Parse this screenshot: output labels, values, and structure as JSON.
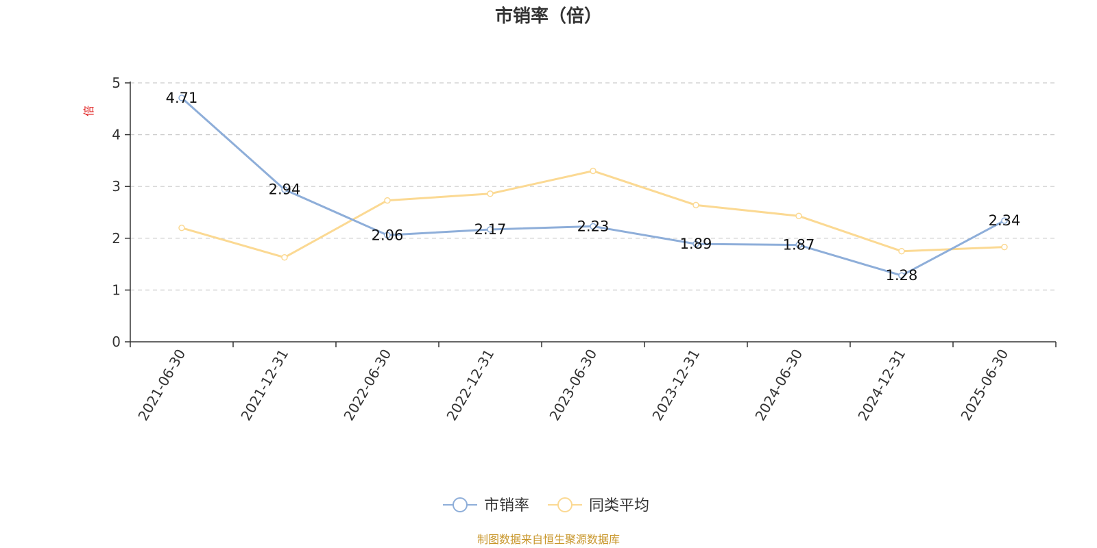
{
  "chart_data": {
    "type": "line",
    "title": "市销率（倍）",
    "ylabel": "倍",
    "xlabel": "",
    "ylim": [
      0,
      5
    ],
    "yticks": [
      0,
      1,
      2,
      3,
      4,
      5
    ],
    "grid": true,
    "legend_position": "bottom-center",
    "categories": [
      "2021-06-30",
      "2021-12-31",
      "2022-06-30",
      "2022-12-31",
      "2023-06-30",
      "2023-12-31",
      "2024-06-30",
      "2024-12-31",
      "2025-06-30"
    ],
    "series": [
      {
        "name": "市销率",
        "color": "#8eaed9",
        "values": [
          4.71,
          2.94,
          2.06,
          2.17,
          2.23,
          1.89,
          1.87,
          1.28,
          2.34
        ],
        "show_labels": true,
        "labels": [
          "4.71",
          "2.94",
          "2.06",
          "2.17",
          "2.23",
          "1.89",
          "1.87",
          "1.28",
          "2.34"
        ]
      },
      {
        "name": "同类平均",
        "color": "#fbd993",
        "values": [
          2.2,
          1.63,
          2.73,
          2.86,
          3.3,
          2.64,
          2.43,
          1.75,
          1.83
        ],
        "show_labels": false
      }
    ],
    "source": "制图数据来自恒生聚源数据库"
  },
  "colors": {
    "unit_label": "#e02020",
    "source": "#c8962a",
    "axis": "#333333",
    "grid": "#cccccc"
  }
}
